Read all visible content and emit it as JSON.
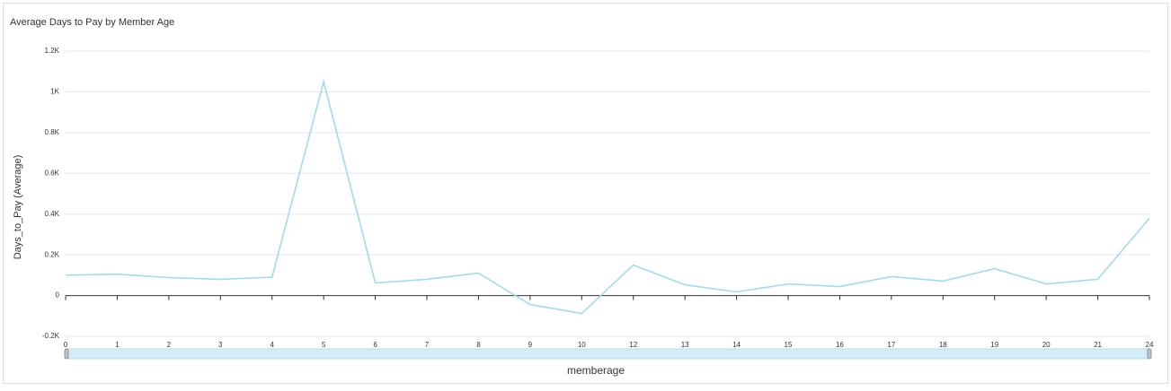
{
  "chart_data": {
    "type": "line",
    "title": "Average Days to Pay by Member Age",
    "x_label": "memberage",
    "y_label": "Days_to_Pay (Average)",
    "categories": [
      "0",
      "1",
      "2",
      "3",
      "4",
      "5",
      "6",
      "7",
      "8",
      "9",
      "10",
      "12",
      "13",
      "14",
      "15",
      "16",
      "17",
      "18",
      "19",
      "20",
      "21",
      "24"
    ],
    "series": [
      {
        "name": "Days_to_Pay (Average)",
        "color": "#9fdcec",
        "values": [
          100,
          105,
          88,
          80,
          90,
          1050,
          62,
          80,
          110,
          -44,
          -88,
          150,
          53,
          18,
          57,
          44,
          93,
          71,
          132,
          57,
          80,
          380
        ]
      }
    ],
    "ylim": [
      -200,
      1200
    ],
    "yticks": [
      {
        "value": -200,
        "label": "-0.2K"
      },
      0,
      {
        "value": 200,
        "label": "0.2K"
      },
      {
        "value": 400,
        "label": "0.4K"
      },
      {
        "value": 600,
        "label": "0.6K"
      },
      {
        "value": 800,
        "label": "0.8K"
      },
      {
        "value": 1000,
        "label": "1K"
      },
      {
        "value": 1200,
        "label": "1.2K"
      }
    ],
    "grid": true
  }
}
